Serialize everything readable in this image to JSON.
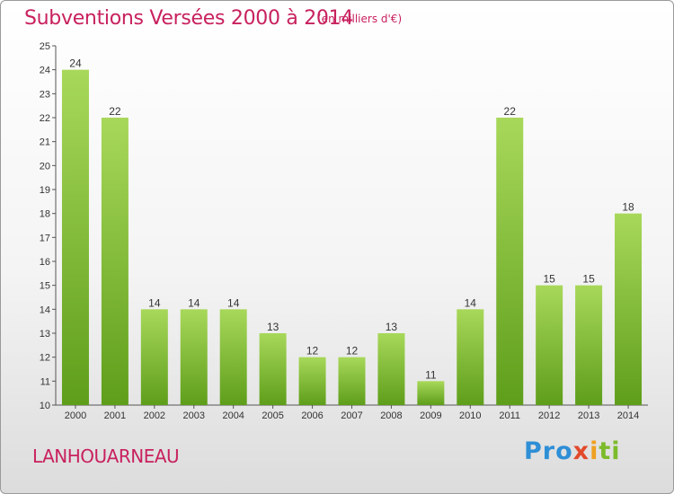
{
  "title": "Subventions Versées 2000 à 2014",
  "subtitle": "(en milliers d'€)",
  "commune": "LANHOUARNEAU",
  "logo": {
    "p1": "Pro",
    "p2": "x",
    "p3": "i",
    "p4": "ti"
  },
  "colors": {
    "title": "#c8215e",
    "bar_top": "#a8d85a",
    "bar_bottom": "#5e9e1a",
    "axis": "#555555"
  },
  "chart_data": {
    "type": "bar",
    "categories": [
      "2000",
      "2001",
      "2002",
      "2003",
      "2004",
      "2005",
      "2006",
      "2007",
      "2008",
      "2009",
      "2010",
      "2011",
      "2012",
      "2013",
      "2014"
    ],
    "values": [
      24,
      22,
      14,
      14,
      14,
      13,
      12,
      12,
      13,
      11,
      14,
      22,
      15,
      15,
      18
    ],
    "yticks": [
      10,
      11,
      12,
      13,
      14,
      15,
      16,
      17,
      18,
      19,
      20,
      21,
      22,
      23,
      24,
      25
    ],
    "ylim": [
      10,
      25
    ],
    "grid": false
  }
}
